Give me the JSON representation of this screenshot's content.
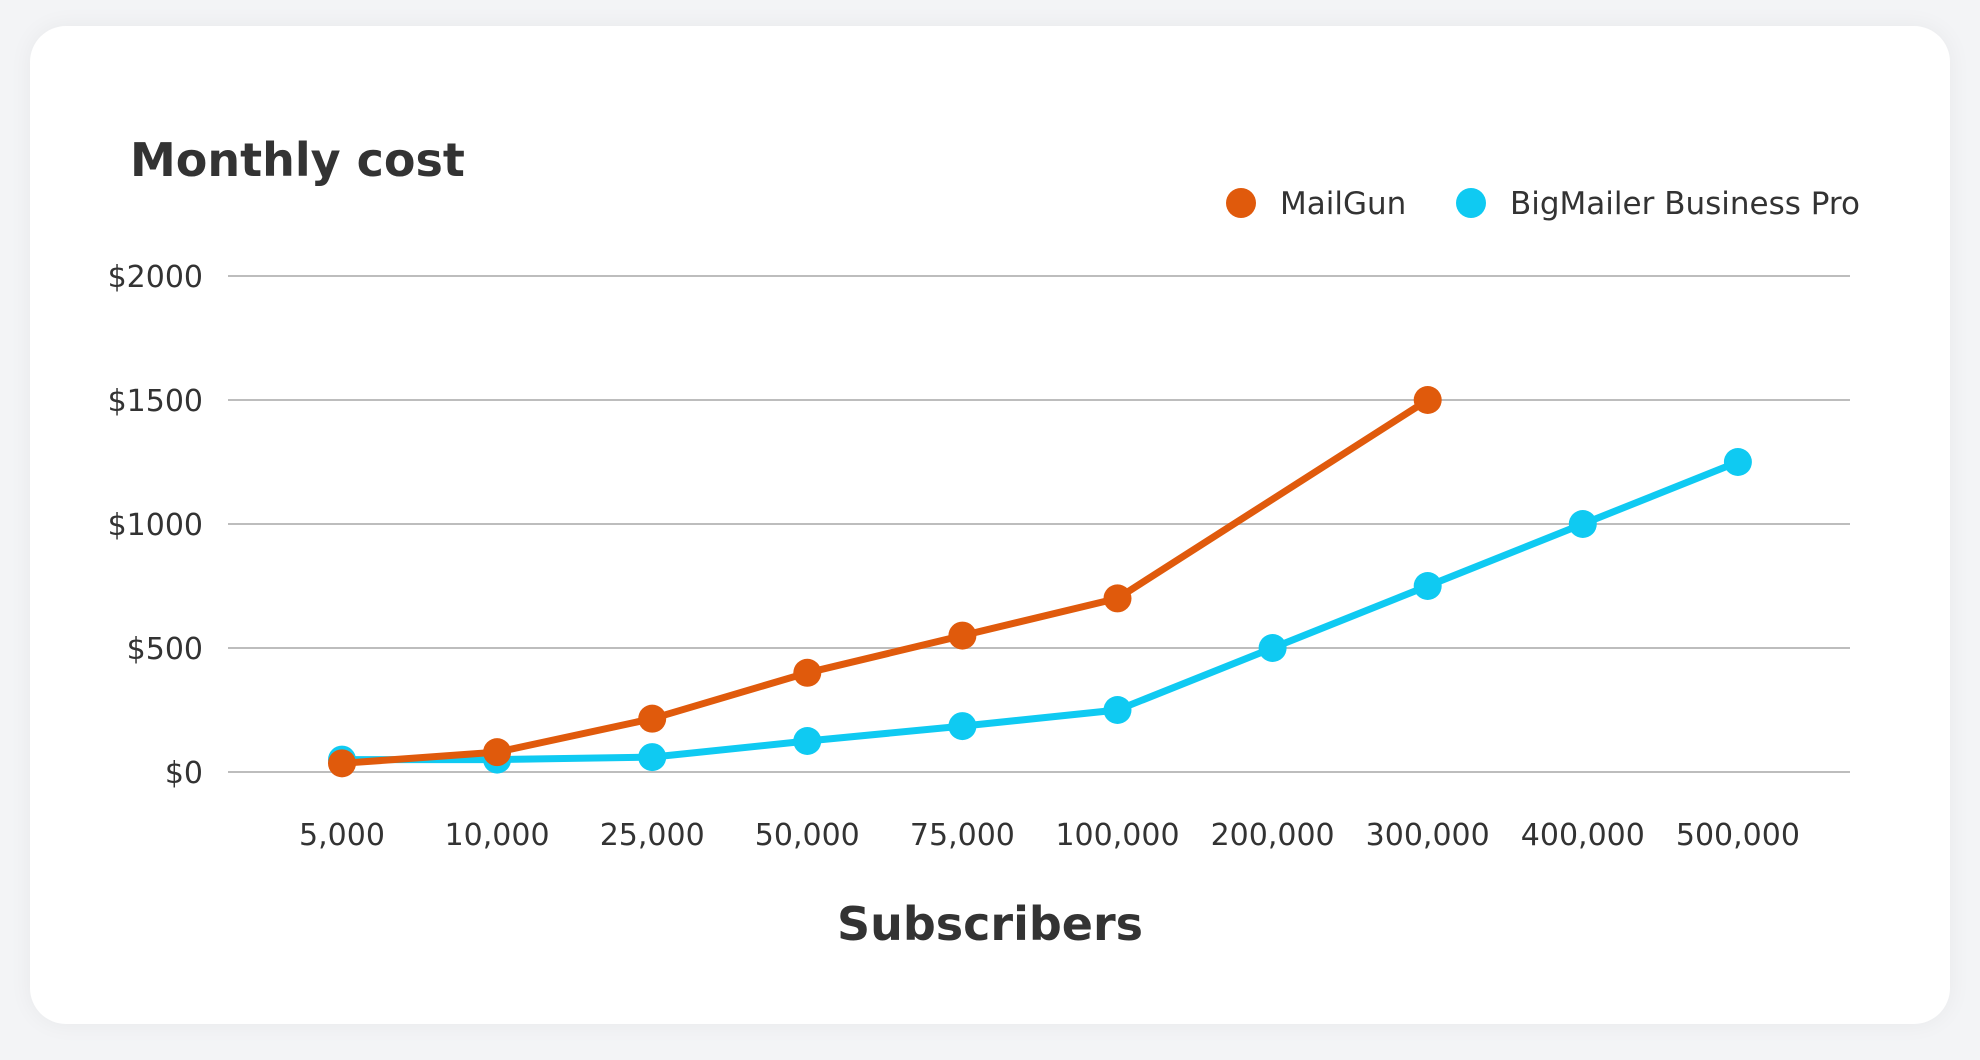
{
  "chart_data": {
    "type": "line",
    "title": "Monthly cost",
    "xlabel": "Subscribers",
    "ylabel": "",
    "categories": [
      "5,000",
      "10,000",
      "25,000",
      "50,000",
      "75,000",
      "100,000",
      "200,000",
      "300,000",
      "400,000",
      "500,000"
    ],
    "ylim": [
      0,
      2000
    ],
    "yticks": [
      0,
      500,
      1000,
      1500,
      2000
    ],
    "ytick_labels": [
      "$0",
      "$500",
      "$1000",
      "$1500",
      "$2000"
    ],
    "grid": true,
    "legend_position": "top-right",
    "series": [
      {
        "name": "MailGun",
        "color": "#e05a0c",
        "values": [
          35,
          80,
          215,
          400,
          550,
          700,
          null,
          1500,
          null,
          null
        ]
      },
      {
        "name": "BigMailer Business Pro",
        "color": "#0fcaf2",
        "values": [
          50,
          50,
          60,
          125,
          185,
          250,
          500,
          750,
          1000,
          1250
        ]
      }
    ]
  }
}
